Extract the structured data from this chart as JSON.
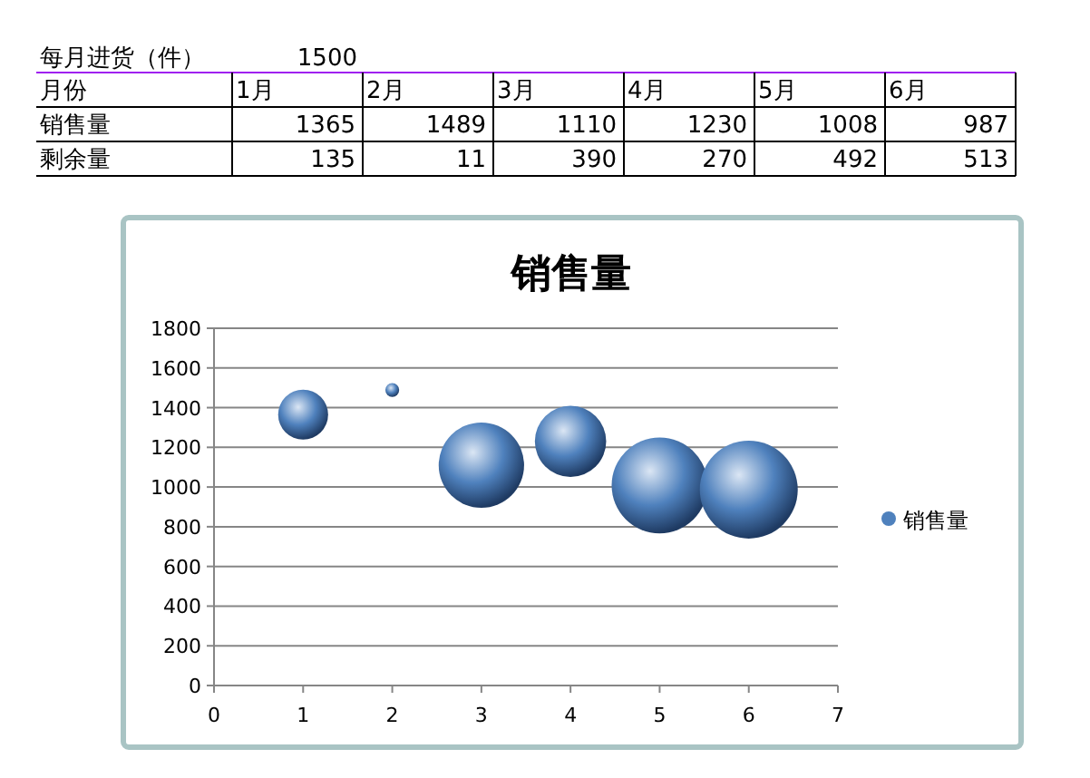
{
  "chart_data": {
    "type": "bubble",
    "title": "销售量",
    "x": [
      1,
      2,
      3,
      4,
      5,
      6
    ],
    "series": [
      {
        "name": "销售量",
        "color": "#4f81bd",
        "values": [
          1365,
          1489,
          1110,
          1230,
          1008,
          987
        ],
        "sizes": [
          0.26,
          0.02,
          0.76,
          0.53,
          0.96,
          1
        ]
      }
    ],
    "xlim": [
      0,
      7
    ],
    "xticks": [
      0,
      1,
      2,
      3,
      4,
      5,
      6,
      7
    ],
    "ylim": [
      0,
      1800
    ],
    "yticks": [
      0,
      200,
      400,
      600,
      800,
      1000,
      1200,
      1400,
      1600,
      1800
    ],
    "grid": "y",
    "legend": "right",
    "annotations": [
      "每月进货（件）",
      "1500",
      "月份",
      "1月",
      "2月",
      "3月",
      "4月",
      "5月",
      "6月",
      "销售量",
      "1365",
      "1489",
      "1110",
      "1230",
      "1008",
      "987",
      "剩余量",
      "135",
      "11",
      "390",
      "270",
      "492",
      "513"
    ]
  }
}
